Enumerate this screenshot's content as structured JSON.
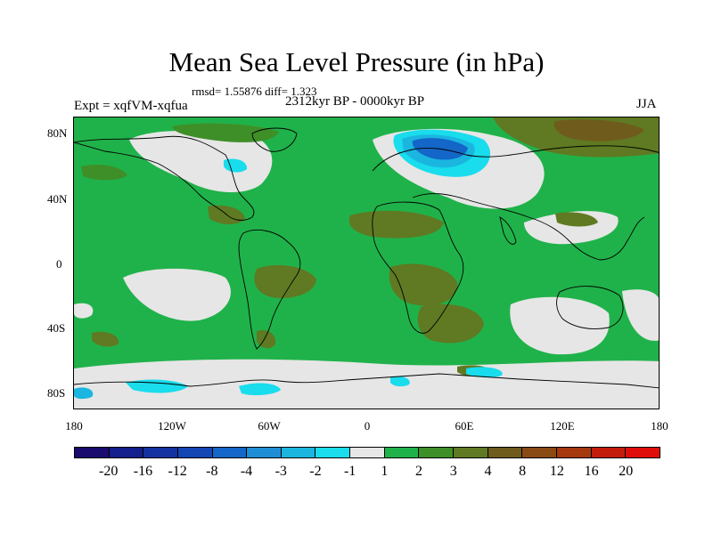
{
  "title": "Mean Sea Level Pressure (in hPa)",
  "stats_line": "rmsd= 1.55876 diff= 1.323",
  "experiment_label": "Expt = xqfVM-xqfua",
  "period_label": "2312kyr BP - 0000kyr BP",
  "season_label": "JJA",
  "lat_labels": [
    "80N",
    "40N",
    "0",
    "40S",
    "80S"
  ],
  "lon_labels": [
    "180",
    "120W",
    "60W",
    "0",
    "60E",
    "120E",
    "180"
  ],
  "colorbar": {
    "colors": [
      "#1a0b6e",
      "#141e8c",
      "#1432a0",
      "#1446b4",
      "#1466c8",
      "#1f8ed6",
      "#1ab6e0",
      "#19dcec",
      "#e6e6e6",
      "#20b24a",
      "#3f8f28",
      "#5f7a22",
      "#6f5c1c",
      "#8a4a14",
      "#a6380e",
      "#c41c0c",
      "#e00e0a"
    ],
    "labels": [
      "-20",
      "-16",
      "-12",
      "-8",
      "-4",
      "-3",
      "-2",
      "-1",
      "1",
      "2",
      "3",
      "4",
      "8",
      "12",
      "16",
      "20"
    ]
  },
  "palette": {
    "bg_green": "#20b24a",
    "neutral": "#e6e6e6",
    "dark_green": "#3f8f28",
    "olive": "#5f7a22",
    "brown": "#6f5c1c",
    "cyan": "#19dcec",
    "light_blue": "#1ab6e0",
    "blue": "#1466c8"
  }
}
